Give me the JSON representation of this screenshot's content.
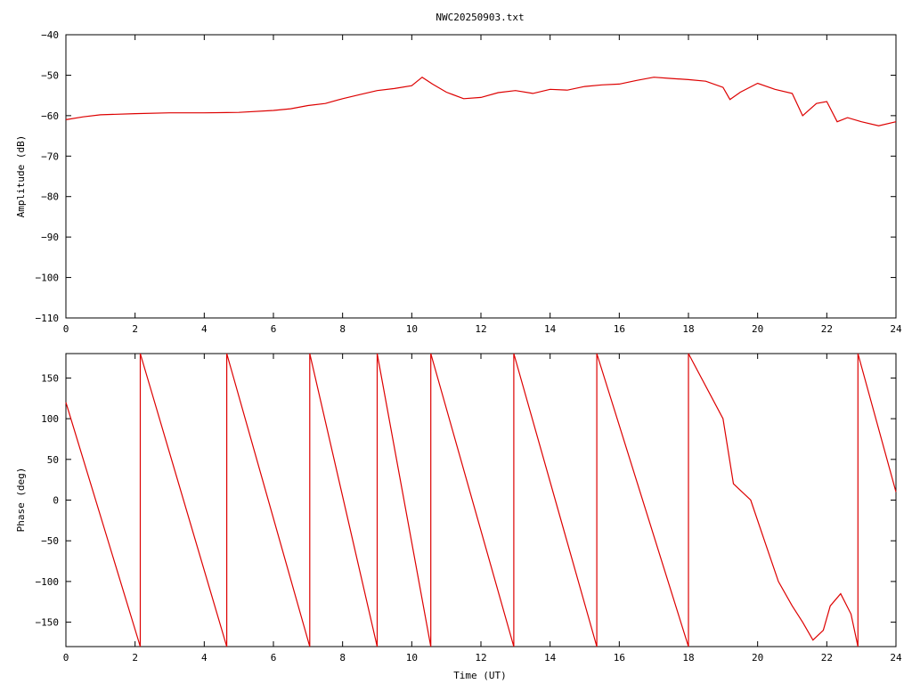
{
  "title": "NWC20250903.txt",
  "accent": "#dd0000",
  "chart_data": [
    {
      "type": "line",
      "ylabel": "Amplitude (dB)",
      "xlabel": "",
      "xlim": [
        0,
        24
      ],
      "ylim": [
        -110,
        -40
      ],
      "x_ticks": [
        0,
        2,
        4,
        6,
        8,
        10,
        12,
        14,
        16,
        18,
        20,
        22,
        24
      ],
      "y_ticks": [
        -110,
        -100,
        -90,
        -80,
        -70,
        -60,
        -50,
        -40
      ],
      "series": [
        {
          "x": [
            0,
            0.5,
            1,
            2,
            3,
            4,
            5,
            6,
            6.5,
            7,
            7.5,
            8,
            8.5,
            9,
            9.5,
            10,
            10.3,
            10.6,
            11,
            11.5,
            12,
            12.5,
            13,
            13.5,
            14,
            14.5,
            15,
            15.5,
            16,
            16.5,
            17,
            17.5,
            18,
            18.5,
            19,
            19.2,
            19.5,
            20,
            20.5,
            21,
            21.3,
            21.7,
            22,
            22.3,
            22.6,
            23,
            23.5,
            24
          ],
          "y": [
            -61,
            -60.3,
            -59.8,
            -59.5,
            -59.3,
            -59.3,
            -59.2,
            -58.7,
            -58.3,
            -57.5,
            -57,
            -55.8,
            -54.8,
            -53.8,
            -53.3,
            -52.6,
            -50.5,
            -52.2,
            -54.2,
            -55.8,
            -55.5,
            -54.3,
            -53.8,
            -54.5,
            -53.5,
            -53.7,
            -52.8,
            -52.4,
            -52.2,
            -51.3,
            -50.5,
            -50.8,
            -51.1,
            -51.5,
            -53,
            -56,
            -54.2,
            -52,
            -53.5,
            -54.5,
            -60,
            -57,
            -56.5,
            -61.5,
            -60.5,
            -61.5,
            -62.5,
            -61.5
          ]
        }
      ]
    },
    {
      "type": "line",
      "ylabel": "Phase (deg)",
      "xlabel": "Time (UT)",
      "xlim": [
        0,
        24
      ],
      "ylim": [
        -180,
        180
      ],
      "x_ticks": [
        0,
        2,
        4,
        6,
        8,
        10,
        12,
        14,
        16,
        18,
        20,
        22,
        24
      ],
      "y_ticks": [
        -150,
        -100,
        -50,
        0,
        50,
        100,
        150
      ],
      "series": [
        {
          "x": [
            0,
            2.15,
            2.15,
            4.65,
            4.65,
            7.05,
            7.05,
            9.0,
            9.0,
            10.55,
            10.55,
            12.95,
            12.95,
            15.35,
            15.35,
            18.0,
            18.0,
            19.0,
            19.3,
            19.8,
            20.2,
            20.6,
            21.0,
            21.3,
            21.6,
            21.9,
            22.1,
            22.4,
            22.7,
            22.9,
            22.9,
            24.0
          ],
          "y": [
            120,
            -180,
            180,
            -180,
            180,
            -180,
            180,
            -180,
            180,
            -180,
            180,
            -180,
            180,
            -180,
            180,
            -180,
            180,
            100,
            20,
            0,
            -50,
            -100,
            -130,
            -150,
            -172,
            -160,
            -130,
            -115,
            -140,
            -180,
            180,
            10
          ]
        }
      ]
    }
  ]
}
